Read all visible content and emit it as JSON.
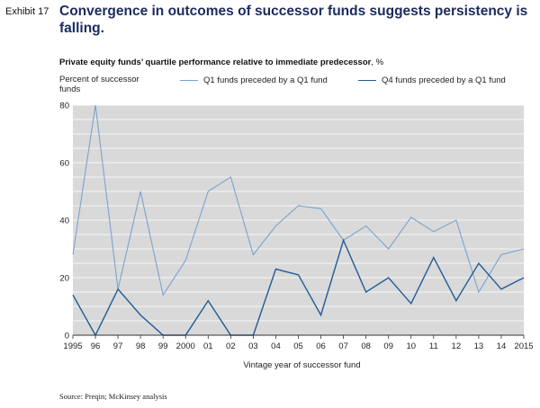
{
  "header": {
    "exhibit": "Exhibit 17",
    "title": "Convergence in outcomes of successor funds suggests persistency is falling."
  },
  "footer": {
    "source": "Source: Preqin; McKinsey analysis"
  },
  "chart_data": {
    "type": "line",
    "title": "Private equity funds’ quartile performance relative to immediate predecessor",
    "title_unit": ", %",
    "ylabel": "Percent of successor funds",
    "xlabel": "Vintage year of successor fund",
    "ylim": [
      0,
      80
    ],
    "yticks": [
      0,
      20,
      40,
      60,
      80
    ],
    "grid": true,
    "legend_position": "top",
    "background_color": "#d9d9d9",
    "categories": [
      "1995",
      "96",
      "97",
      "98",
      "99",
      "2000",
      "01",
      "02",
      "03",
      "04",
      "05",
      "06",
      "07",
      "08",
      "09",
      "10",
      "11",
      "12",
      "13",
      "14",
      "2015"
    ],
    "series": [
      {
        "name": "Q1 funds preceded by a Q1 fund",
        "color": "#7aa3cf",
        "values": [
          28,
          80,
          16,
          50,
          14,
          26,
          50,
          55,
          28,
          38,
          45,
          44,
          33,
          38,
          30,
          41,
          36,
          40,
          15,
          28,
          30
        ]
      },
      {
        "name": "Q4 funds preceded by a Q1 fund",
        "color": "#1f5c96",
        "values": [
          14,
          0,
          16,
          7,
          0,
          0,
          12,
          0,
          0,
          23,
          21,
          7,
          33,
          15,
          20,
          11,
          27,
          12,
          25,
          16,
          20
        ]
      }
    ]
  }
}
